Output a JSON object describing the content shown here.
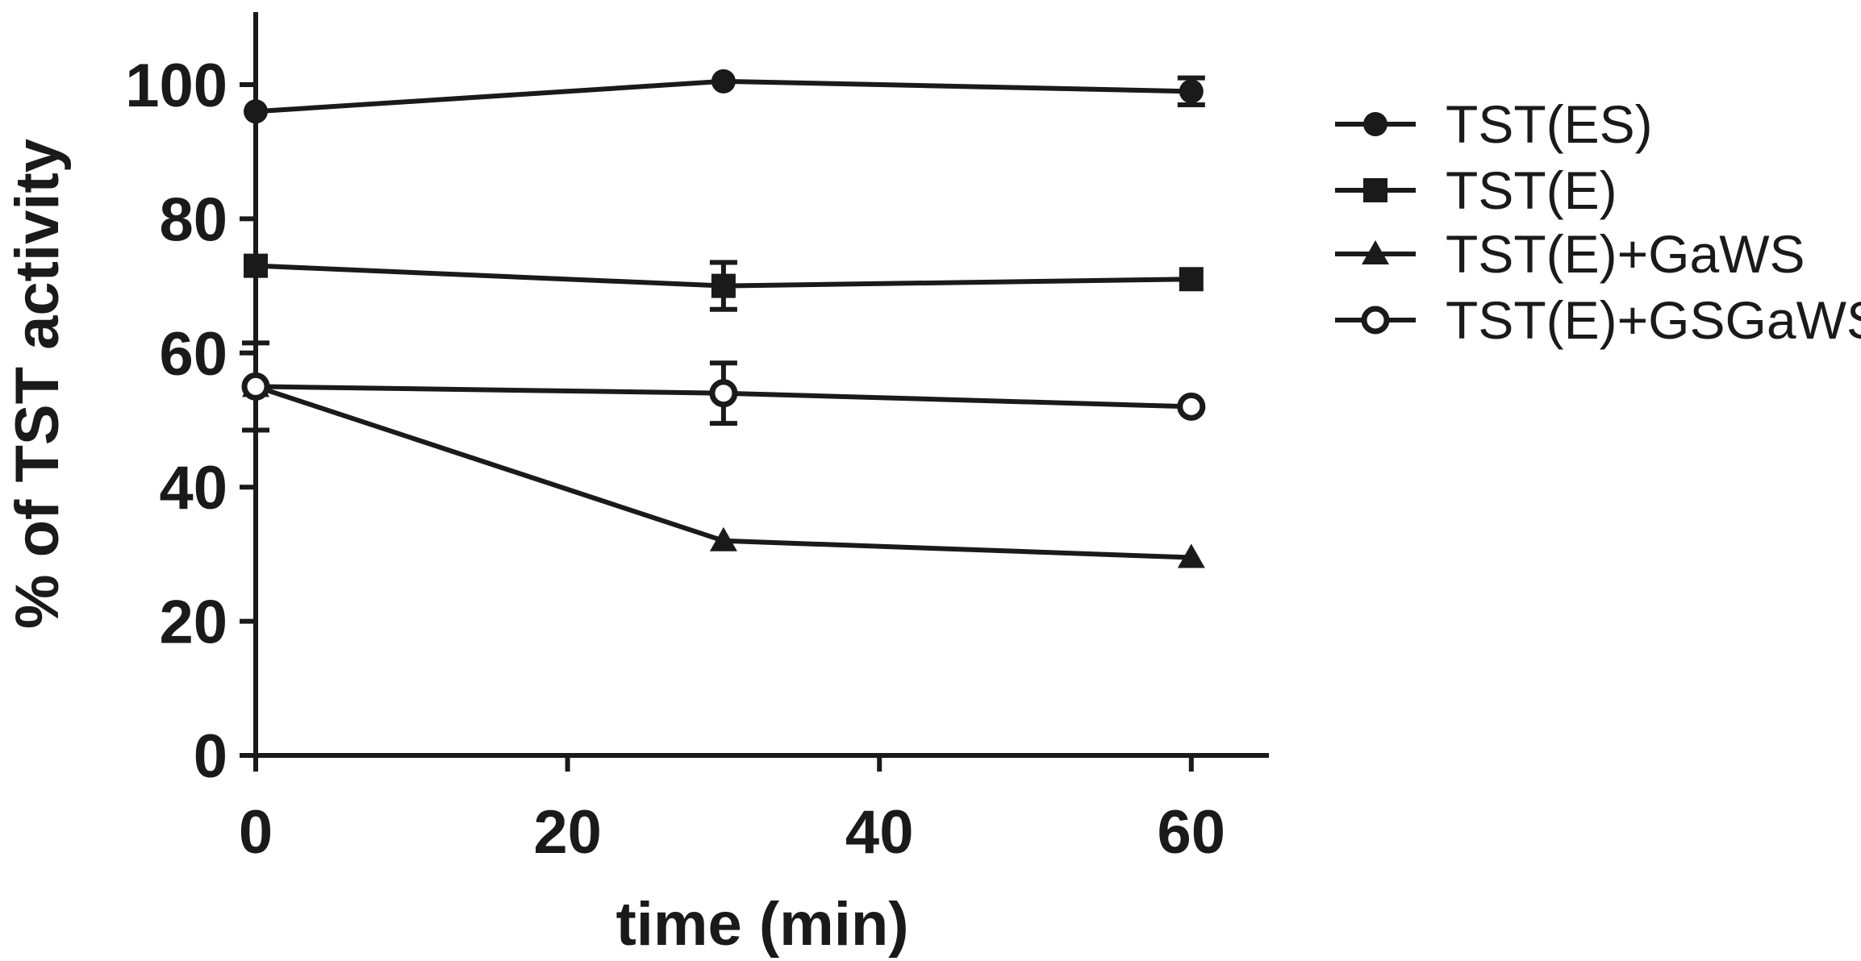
{
  "chart_data": {
    "type": "line",
    "xlabel": "time (min)",
    "ylabel": "% of TST activity",
    "xlim": [
      0,
      65
    ],
    "ylim": [
      0,
      110
    ],
    "xticks": [
      0,
      20,
      40,
      60
    ],
    "yticks": [
      0,
      20,
      40,
      60,
      80,
      100
    ],
    "x_tick_labels": [
      "0",
      "20",
      "40",
      "60"
    ],
    "y_tick_labels": [
      "0",
      "20",
      "40",
      "60",
      "80",
      "100"
    ],
    "legend_position": "right",
    "grid": false,
    "x": [
      0,
      30,
      60
    ],
    "series": [
      {
        "name": "TST(ES)",
        "marker": "circle-filled",
        "values": [
          96,
          100.5,
          99
        ],
        "errors": [
          0,
          0,
          2
        ]
      },
      {
        "name": "TST(E)",
        "marker": "square-filled",
        "values": [
          73,
          70,
          71
        ],
        "errors": [
          0,
          3.5,
          0
        ]
      },
      {
        "name": "TST(E)+GaWS",
        "marker": "triangle-filled",
        "values": [
          55,
          32,
          29.5
        ],
        "errors": [
          0,
          0,
          0
        ]
      },
      {
        "name": "TST(E)+GSGaWS",
        "marker": "circle-open",
        "values": [
          55,
          54,
          52
        ],
        "errors": [
          6.5,
          4.5,
          0
        ]
      }
    ],
    "colors": {
      "line": "#1a1a1a",
      "background": "#ffffff"
    }
  }
}
